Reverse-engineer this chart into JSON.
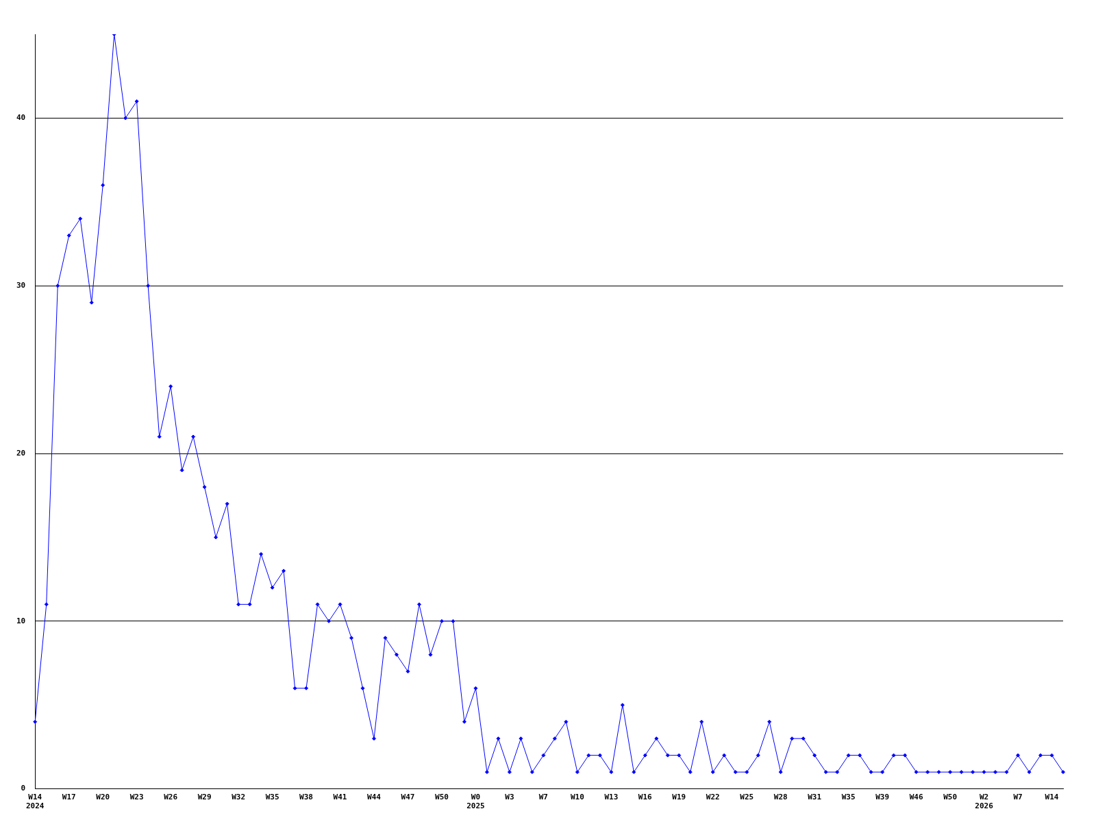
{
  "chart_data": {
    "type": "line",
    "categories": [
      "W14\n2024",
      null,
      null,
      "W17",
      null,
      null,
      "W20",
      null,
      null,
      "W23",
      null,
      null,
      "W26",
      null,
      null,
      "W29",
      null,
      null,
      "W32",
      null,
      null,
      "W35",
      null,
      null,
      "W38",
      null,
      null,
      "W41",
      null,
      null,
      "W44",
      null,
      null,
      "W47",
      null,
      null,
      "W50",
      null,
      null,
      "W0\n2025",
      null,
      null,
      "W3",
      null,
      null,
      "W7",
      null,
      null,
      "W10",
      null,
      null,
      "W13",
      null,
      null,
      "W16",
      null,
      null,
      "W19",
      null,
      null,
      "W22",
      null,
      null,
      "W25",
      null,
      null,
      "W28",
      null,
      null,
      "W31",
      null,
      null,
      "W35",
      null,
      null,
      "W39",
      null,
      null,
      "W46",
      null,
      null,
      "W50",
      null,
      null,
      "W2\n2026",
      null,
      null,
      "W7",
      null,
      null,
      "W14",
      null
    ],
    "series": [
      {
        "color": "#0000ff",
        "values": [
          4,
          11,
          30,
          33,
          34,
          29,
          36,
          45,
          40,
          41,
          30,
          21,
          24,
          19,
          21,
          18,
          15,
          17,
          11,
          11,
          14,
          12,
          13,
          6,
          6,
          11,
          10,
          11,
          9,
          6,
          3,
          9,
          8,
          7,
          11,
          8,
          10,
          10,
          4,
          6,
          1,
          3,
          1,
          3,
          1,
          2,
          3,
          4,
          1,
          2,
          2,
          1,
          5,
          1,
          2,
          3,
          2,
          2,
          1,
          4,
          1,
          2,
          1,
          1,
          2,
          4,
          1,
          3,
          3,
          2,
          1,
          1,
          2,
          2,
          1,
          1,
          2,
          2,
          1,
          1,
          1,
          1,
          1,
          1,
          1,
          1,
          1,
          2,
          1,
          2,
          2,
          1
        ]
      }
    ],
    "ylim": [
      0,
      45
    ],
    "yticks": [
      0,
      10,
      20,
      30,
      40
    ],
    "grid": "y",
    "legend": false,
    "marker": "diamond",
    "line_style": "solid"
  }
}
